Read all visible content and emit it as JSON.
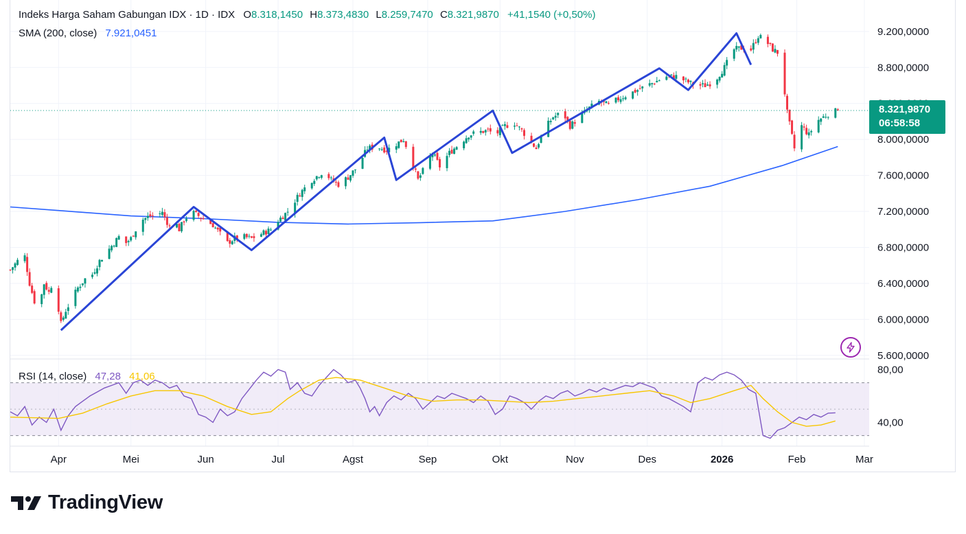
{
  "legend": {
    "title": "Indeks Harga Saham Gabungan IDX · 1D · IDX",
    "o_label": "O",
    "o_value": "8.318,1450",
    "h_label": "H",
    "h_value": "8.373,4830",
    "l_label": "L",
    "l_value": "8.259,7470",
    "c_label": "C",
    "c_value": "8.321,9870",
    "change": "+41,1540 (+0,50%)",
    "sma_label": "SMA (200, close)",
    "sma_value": "7.921,0451",
    "rsi_label": "RSI (14, close)",
    "rsi_value": "47,28",
    "rsi_ma_value": "41,06"
  },
  "price_tag": {
    "price": "8.321,9870",
    "countdown": "06:58:58"
  },
  "brand": {
    "name": "TradingView"
  },
  "colors": {
    "up": "#089981",
    "down": "#f23645",
    "sma": "#2962ff",
    "zigzag": "#2a45d6",
    "rsi": "#7e57c2",
    "rsi_ma": "#f7c600",
    "rsi_band": "#ede7f6"
  },
  "chart_data": [
    {
      "type": "candlestick",
      "title": "Indeks Harga Saham Gabungan IDX · 1D · IDX",
      "y_ticks": [
        "9.200,0000",
        "8.800,0000",
        "8.400,0000",
        "8.000,0000",
        "7.600,0000",
        "7.200,0000",
        "6.800,0000",
        "6.400,0000",
        "6.000,0000",
        "5.600,0000"
      ],
      "y_range": [
        5560,
        9550
      ],
      "x_labels": [
        {
          "label": "Apr",
          "day": 0
        },
        {
          "label": "Mei",
          "day": 30
        },
        {
          "label": "Jun",
          "day": 61
        },
        {
          "label": "Jul",
          "day": 91
        },
        {
          "label": "Agst",
          "day": 122
        },
        {
          "label": "Sep",
          "day": 153
        },
        {
          "label": "Okt",
          "day": 183
        },
        {
          "label": "Nov",
          "day": 214
        },
        {
          "label": "Des",
          "day": 244
        },
        {
          "label": "2026",
          "day": 275
        },
        {
          "label": "Feb",
          "day": 306
        },
        {
          "label": "Mar",
          "day": 334
        }
      ],
      "x_range_days": [
        -20,
        336
      ],
      "last_close": 8321.987,
      "close_path": [
        [
          -20,
          6550
        ],
        [
          -17,
          6650
        ],
        [
          -14,
          6700
        ],
        [
          -12,
          6400
        ],
        [
          -10,
          6200
        ],
        [
          -8,
          6150
        ],
        [
          -6,
          6400
        ],
        [
          -4,
          6300
        ],
        [
          -2,
          6450
        ],
        [
          1,
          5950
        ],
        [
          3,
          6100
        ],
        [
          5,
          6200
        ],
        [
          8,
          6350
        ],
        [
          11,
          6450
        ],
        [
          14,
          6500
        ],
        [
          17,
          6650
        ],
        [
          20,
          6750
        ],
        [
          23,
          6850
        ],
        [
          26,
          6950
        ],
        [
          28,
          6850
        ],
        [
          30,
          6900
        ],
        [
          34,
          7100
        ],
        [
          38,
          7150
        ],
        [
          41,
          7150
        ],
        [
          43,
          7200
        ],
        [
          45,
          7050
        ],
        [
          48,
          7100
        ],
        [
          50,
          7000
        ],
        [
          52,
          7100
        ],
        [
          55,
          7200
        ],
        [
          58,
          7150
        ],
        [
          61,
          7100
        ],
        [
          64,
          7050
        ],
        [
          67,
          6950
        ],
        [
          70,
          6850
        ],
        [
          73,
          6900
        ],
        [
          76,
          6920
        ],
        [
          80,
          6900
        ],
        [
          84,
          6950
        ],
        [
          88,
          7000
        ],
        [
          91,
          7100
        ],
        [
          95,
          7200
        ],
        [
          100,
          7400
        ],
        [
          105,
          7550
        ],
        [
          110,
          7650
        ],
        [
          113,
          7550
        ],
        [
          116,
          7500
        ],
        [
          120,
          7580
        ],
        [
          124,
          7700
        ],
        [
          128,
          7900
        ],
        [
          132,
          7920
        ],
        [
          136,
          7880
        ],
        [
          140,
          7950
        ],
        [
          143,
          8000
        ],
        [
          146,
          7800
        ],
        [
          149,
          7550
        ],
        [
          152,
          7700
        ],
        [
          155,
          7850
        ],
        [
          158,
          7700
        ],
        [
          162,
          7850
        ],
        [
          166,
          7950
        ],
        [
          170,
          8050
        ],
        [
          174,
          8080
        ],
        [
          178,
          8100
        ],
        [
          181,
          8050
        ],
        [
          185,
          8150
        ],
        [
          189,
          8180
        ],
        [
          192,
          8100
        ],
        [
          195,
          8000
        ],
        [
          198,
          7900
        ],
        [
          201,
          8100
        ],
        [
          205,
          8250
        ],
        [
          209,
          8300
        ],
        [
          212,
          8150
        ],
        [
          216,
          8250
        ],
        [
          220,
          8350
        ],
        [
          224,
          8420
        ],
        [
          228,
          8380
        ],
        [
          232,
          8450
        ],
        [
          236,
          8500
        ],
        [
          240,
          8550
        ],
        [
          244,
          8600
        ],
        [
          248,
          8650
        ],
        [
          252,
          8700
        ],
        [
          256,
          8700
        ],
        [
          260,
          8650
        ],
        [
          264,
          8600
        ],
        [
          268,
          8600
        ],
        [
          272,
          8650
        ],
        [
          276,
          8800
        ],
        [
          280,
          9000
        ],
        [
          284,
          9020
        ],
        [
          287,
          9000
        ],
        [
          290,
          9150
        ],
        [
          293,
          9100
        ],
        [
          296,
          9000
        ],
        [
          299,
          8950
        ],
        [
          302,
          8300
        ],
        [
          305,
          7900
        ],
        [
          308,
          8150
        ],
        [
          311,
          8050
        ],
        [
          314,
          8200
        ],
        [
          317,
          8250
        ],
        [
          320,
          8300
        ],
        [
          323,
          8320
        ]
      ],
      "sma_200": [
        [
          -20,
          7250
        ],
        [
          0,
          7210
        ],
        [
          30,
          7150
        ],
        [
          60,
          7120
        ],
        [
          90,
          7080
        ],
        [
          120,
          7060
        ],
        [
          150,
          7075
        ],
        [
          180,
          7095
        ],
        [
          210,
          7200
        ],
        [
          240,
          7330
        ],
        [
          270,
          7480
        ],
        [
          300,
          7710
        ],
        [
          323,
          7921
        ]
      ],
      "zigzag": [
        [
          1,
          5880
        ],
        [
          56,
          7250
        ],
        [
          80,
          6770
        ],
        [
          135,
          8020
        ],
        [
          140,
          7550
        ],
        [
          180,
          8320
        ],
        [
          188,
          7850
        ],
        [
          249,
          8790
        ],
        [
          261,
          8550
        ],
        [
          281,
          9180
        ],
        [
          287,
          8830
        ]
      ]
    },
    {
      "type": "line",
      "title": "RSI (14, close)",
      "y_ticks": [
        "80,00",
        "40,00"
      ],
      "y_range": [
        22,
        88
      ],
      "band_upper": 70,
      "band_lower": 30,
      "rsi": [
        [
          -20,
          48
        ],
        [
          -17,
          45
        ],
        [
          -14,
          52
        ],
        [
          -11,
          38
        ],
        [
          -8,
          44
        ],
        [
          -5,
          40
        ],
        [
          -2,
          50
        ],
        [
          1,
          34
        ],
        [
          4,
          45
        ],
        [
          7,
          52
        ],
        [
          10,
          56
        ],
        [
          13,
          60
        ],
        [
          16,
          63
        ],
        [
          19,
          66
        ],
        [
          22,
          68
        ],
        [
          25,
          70
        ],
        [
          28,
          62
        ],
        [
          31,
          70
        ],
        [
          34,
          72
        ],
        [
          37,
          68
        ],
        [
          40,
          72
        ],
        [
          43,
          70
        ],
        [
          46,
          66
        ],
        [
          49,
          68
        ],
        [
          52,
          60
        ],
        [
          55,
          58
        ],
        [
          58,
          46
        ],
        [
          61,
          44
        ],
        [
          64,
          40
        ],
        [
          67,
          50
        ],
        [
          70,
          45
        ],
        [
          73,
          48
        ],
        [
          76,
          58
        ],
        [
          79,
          65
        ],
        [
          82,
          72
        ],
        [
          85,
          78
        ],
        [
          88,
          75
        ],
        [
          91,
          80
        ],
        [
          94,
          78
        ],
        [
          96,
          65
        ],
        [
          99,
          70
        ],
        [
          102,
          62
        ],
        [
          105,
          60
        ],
        [
          108,
          68
        ],
        [
          111,
          74
        ],
        [
          114,
          80
        ],
        [
          117,
          76
        ],
        [
          120,
          70
        ],
        [
          123,
          72
        ],
        [
          125,
          66
        ],
        [
          127,
          58
        ],
        [
          129,
          48
        ],
        [
          131,
          52
        ],
        [
          133,
          45
        ],
        [
          136,
          55
        ],
        [
          139,
          60
        ],
        [
          142,
          57
        ],
        [
          145,
          62
        ],
        [
          148,
          58
        ],
        [
          151,
          50
        ],
        [
          154,
          55
        ],
        [
          157,
          60
        ],
        [
          160,
          58
        ],
        [
          163,
          62
        ],
        [
          166,
          60
        ],
        [
          169,
          58
        ],
        [
          172,
          55
        ],
        [
          175,
          60
        ],
        [
          178,
          56
        ],
        [
          181,
          46
        ],
        [
          184,
          50
        ],
        [
          187,
          60
        ],
        [
          190,
          58
        ],
        [
          193,
          55
        ],
        [
          196,
          50
        ],
        [
          199,
          56
        ],
        [
          202,
          60
        ],
        [
          205,
          58
        ],
        [
          208,
          62
        ],
        [
          211,
          64
        ],
        [
          214,
          60
        ],
        [
          217,
          62
        ],
        [
          220,
          65
        ],
        [
          223,
          63
        ],
        [
          226,
          66
        ],
        [
          229,
          64
        ],
        [
          232,
          66
        ],
        [
          235,
          68
        ],
        [
          238,
          67
        ],
        [
          241,
          70
        ],
        [
          244,
          68
        ],
        [
          247,
          66
        ],
        [
          250,
          60
        ],
        [
          253,
          58
        ],
        [
          256,
          55
        ],
        [
          259,
          52
        ],
        [
          262,
          48
        ],
        [
          265,
          70
        ],
        [
          268,
          74
        ],
        [
          271,
          72
        ],
        [
          274,
          76
        ],
        [
          277,
          78
        ],
        [
          280,
          76
        ],
        [
          283,
          72
        ],
        [
          286,
          65
        ],
        [
          289,
          62
        ],
        [
          292,
          30
        ],
        [
          295,
          28
        ],
        [
          298,
          34
        ],
        [
          301,
          36
        ],
        [
          304,
          40
        ],
        [
          307,
          44
        ],
        [
          310,
          42
        ],
        [
          313,
          46
        ],
        [
          316,
          44
        ],
        [
          319,
          47
        ],
        [
          322,
          47.28
        ]
      ],
      "rsi_ma": [
        [
          -20,
          44
        ],
        [
          0,
          43
        ],
        [
          10,
          47
        ],
        [
          20,
          54
        ],
        [
          30,
          60
        ],
        [
          40,
          64
        ],
        [
          50,
          64
        ],
        [
          60,
          60
        ],
        [
          70,
          52
        ],
        [
          80,
          46
        ],
        [
          88,
          48
        ],
        [
          95,
          58
        ],
        [
          100,
          64
        ],
        [
          108,
          72
        ],
        [
          115,
          74
        ],
        [
          125,
          72
        ],
        [
          135,
          66
        ],
        [
          145,
          60
        ],
        [
          155,
          56
        ],
        [
          165,
          57
        ],
        [
          175,
          57
        ],
        [
          185,
          56
        ],
        [
          195,
          55
        ],
        [
          205,
          56
        ],
        [
          215,
          58
        ],
        [
          225,
          60
        ],
        [
          235,
          62
        ],
        [
          245,
          64
        ],
        [
          255,
          60
        ],
        [
          262,
          55
        ],
        [
          270,
          58
        ],
        [
          280,
          64
        ],
        [
          287,
          68
        ],
        [
          292,
          58
        ],
        [
          298,
          48
        ],
        [
          304,
          40
        ],
        [
          310,
          37
        ],
        [
          316,
          38
        ],
        [
          322,
          41.06
        ]
      ]
    }
  ]
}
